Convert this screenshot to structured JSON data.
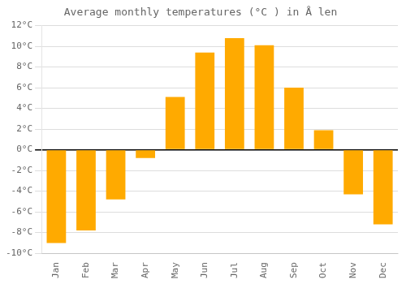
{
  "chart_data": {
    "type": "bar",
    "title": "Average monthly temperatures (°C ) in Å len",
    "categories": [
      "Jan",
      "Feb",
      "Mar",
      "Apr",
      "May",
      "Jun",
      "Jul",
      "Aug",
      "Sep",
      "Oct",
      "Nov",
      "Dec"
    ],
    "values": [
      -9.0,
      -7.8,
      -4.8,
      -0.8,
      5.1,
      9.4,
      10.8,
      10.1,
      6.0,
      1.9,
      -4.3,
      -7.2
    ],
    "color": "#FFAA00",
    "ylim": [
      -10,
      12
    ],
    "yticks": [
      {
        "value": -10,
        "label": "-10°C"
      },
      {
        "value": -8,
        "label": "-8°C"
      },
      {
        "value": -6,
        "label": "-6°C"
      },
      {
        "value": -4,
        "label": "-4°C"
      },
      {
        "value": -2,
        "label": "-2°C"
      },
      {
        "value": 0,
        "label": "0°C"
      },
      {
        "value": 2,
        "label": "2°C"
      },
      {
        "value": 4,
        "label": "4°C"
      },
      {
        "value": 6,
        "label": "6°C"
      },
      {
        "value": 8,
        "label": "8°C"
      },
      {
        "value": 10,
        "label": "10°C"
      },
      {
        "value": 12,
        "label": "12°C"
      }
    ],
    "grid": true
  }
}
